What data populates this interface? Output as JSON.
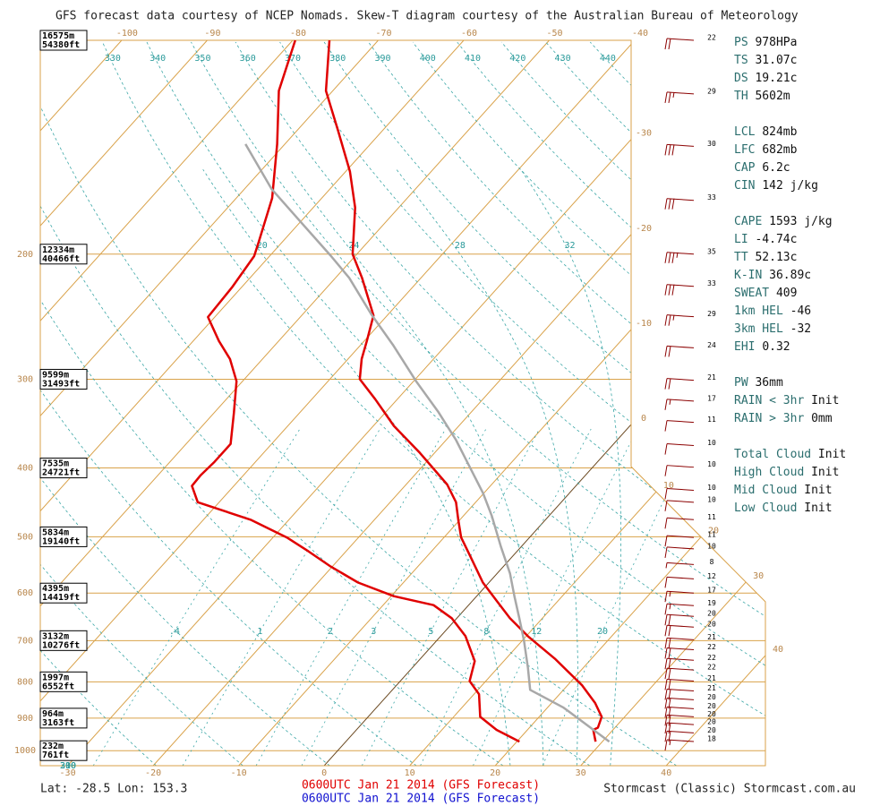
{
  "header": "GFS forecast data courtesy of NCEP Nomads.  Skew-T diagram courtesy of the Australian Bureau of Meteorology",
  "chart_data": {
    "type": "skewt",
    "ylim": [
      1050,
      100
    ],
    "yticks": [
      1000,
      900,
      800,
      700,
      600,
      500,
      400,
      300,
      200
    ],
    "height_labels": [
      {
        "pressure": 100,
        "m": "16575m",
        "ft": "54380ft"
      },
      {
        "pressure": 200,
        "m": "12334m",
        "ft": "40466ft"
      },
      {
        "pressure": 300,
        "m": "9599m",
        "ft": "31493ft"
      },
      {
        "pressure": 400,
        "m": "7535m",
        "ft": "24721ft"
      },
      {
        "pressure": 500,
        "m": "5834m",
        "ft": "19140ft"
      },
      {
        "pressure": 600,
        "m": "4395m",
        "ft": "14419ft"
      },
      {
        "pressure": 700,
        "m": "3132m",
        "ft": "10276ft"
      },
      {
        "pressure": 800,
        "m": "1997m",
        "ft": "6552ft"
      },
      {
        "pressure": 900,
        "m": "964m",
        "ft": "3163ft"
      },
      {
        "pressure": 1000,
        "m": "232m",
        "ft": "761ft"
      }
    ],
    "xlim": [
      -33.2,
      51.6
    ],
    "xticks": [
      -30,
      -20,
      -10,
      0,
      10,
      20,
      30,
      40
    ],
    "top_ticks": [
      -100,
      -90,
      -80,
      -70,
      -60,
      -50,
      -40
    ],
    "right_ticks": [
      -30,
      -20,
      -10,
      0,
      10,
      20,
      30,
      40
    ],
    "dry_adiabats_top": [
      330,
      340,
      350,
      360,
      370,
      380,
      390,
      400,
      410,
      420,
      430,
      440
    ],
    "dry_adiabats_left": [
      310,
      300,
      290,
      280,
      270,
      260,
      250
    ],
    "moist_adiabats": [
      20,
      24,
      28,
      32
    ],
    "mixing_ratio": [
      {
        "value": 0.4,
        "label": ".4"
      },
      1,
      2,
      3,
      5,
      8,
      12,
      20
    ],
    "series": [
      {
        "color": "#e00000",
        "pressure": [
          100,
          117.8,
          134,
          153,
          172,
          200,
          216,
          244,
          265,
          281,
          300,
          320,
          349,
          381,
          422,
          447,
          473,
          501,
          531,
          580,
          615,
          651,
          690,
          742,
          809,
          857,
          896,
          928,
          935,
          971
        ],
        "values": [
          -75.7,
          -70.8,
          -65.2,
          -59.5,
          -55.1,
          -50.5,
          -46.9,
          -41.6,
          -39.7,
          -38.4,
          -36.5,
          -32.6,
          -27.6,
          -21.7,
          -15.2,
          -12.3,
          -10.2,
          -8.0,
          -5.1,
          -0.7,
          2.8,
          6.2,
          10.2,
          15.7,
          21.7,
          25.1,
          27.3,
          28.0,
          27.7,
          29.2
        ]
      },
      {
        "color": "#e00000",
        "pressure": [
          100,
          117.8,
          140,
          166.8,
          192.8,
          201.3,
          222.9,
          245.2,
          265,
          281,
          302,
          334.3,
          370,
          392,
          409.5,
          424,
          447,
          473,
          501,
          524,
          550.5,
          580,
          606,
          624,
          651,
          690,
          748,
          798,
          833,
          896,
          935,
          971
        ],
        "values": [
          -79.7,
          -76.3,
          -70.9,
          -65.8,
          -62.7,
          -61.8,
          -61.1,
          -60.8,
          -57.0,
          -53.8,
          -50.7,
          -47.7,
          -44.8,
          -44.8,
          -45.0,
          -44.9,
          -42.5,
          -34.5,
          -28.4,
          -24.4,
          -20.2,
          -15.3,
          -9.7,
          -4.1,
          -0.6,
          2.9,
          6.6,
          8.1,
          10.6,
          13.1,
          16.4,
          20.3
        ]
      },
      {
        "color": "#a8a8a8",
        "pressure": [
          140,
          162,
          182,
          201,
          216,
          243,
          269,
          302,
          334,
          365,
          398,
          434,
          467,
          516,
          563,
          606,
          651,
          700,
          764,
          821,
          870,
          971
        ],
        "values": [
          -74.6,
          -66.8,
          -59.3,
          -52.9,
          -48.4,
          -42.0,
          -36.1,
          -29.7,
          -23.8,
          -18.9,
          -14.5,
          -10.1,
          -6.7,
          -2.4,
          1.5,
          4.4,
          7.3,
          10.2,
          13.5,
          16.1,
          21.9,
          30.8
        ]
      }
    ],
    "wind": {
      "color": "#8b0000",
      "pressure": [
        100,
        119,
        141,
        168,
        200,
        222,
        245,
        271,
        301,
        322,
        345,
        372,
        399,
        430,
        447,
        473,
        501,
        520,
        547,
        573,
        600,
        625,
        647,
        670,
        698,
        721,
        746,
        770,
        798,
        824,
        848,
        873,
        896,
        919,
        944,
        971
      ],
      "speed": [
        22,
        29,
        30,
        33,
        35,
        33,
        29,
        24,
        21,
        17,
        11,
        10,
        10,
        10,
        10,
        11,
        11,
        10,
        8,
        12,
        17,
        19,
        20,
        20,
        21,
        22,
        22,
        22,
        21,
        21,
        20,
        20,
        20,
        20,
        20,
        18
      ]
    }
  },
  "stats": [
    [
      [
        "PS",
        "978HPa"
      ],
      [
        "TS",
        "31.07c"
      ],
      [
        "DS",
        "19.21c"
      ],
      [
        "TH",
        "5602m"
      ]
    ],
    [
      [
        "LCL",
        "824mb"
      ],
      [
        "LFC",
        "682mb"
      ],
      [
        "CAP",
        "6.2c"
      ],
      [
        "CIN",
        "142 j/kg"
      ]
    ],
    [
      [
        "CAPE",
        "1593 j/kg"
      ],
      [
        "LI",
        "-4.74c"
      ],
      [
        "TT",
        "52.13c"
      ],
      [
        "K-IN",
        "36.89c"
      ],
      [
        "SWEAT",
        "409"
      ],
      [
        "1km HEL",
        "-46"
      ],
      [
        "3km HEL",
        "-32"
      ],
      [
        "EHI",
        "0.32"
      ]
    ],
    [
      [
        "PW",
        "36mm"
      ],
      [
        "RAIN < 3hr",
        "Init"
      ],
      [
        "RAIN > 3hr",
        "0mm"
      ]
    ],
    [
      [
        "Total Cloud",
        "Init"
      ],
      [
        "High Cloud",
        "Init"
      ],
      [
        "Mid Cloud",
        "Init"
      ],
      [
        "Low Cloud",
        "Init"
      ]
    ]
  ],
  "footer": {
    "location": "Lat: -28.5  Lon: 153.3",
    "run_red": "0600UTC Jan 21 2014 (GFS Forecast)",
    "run_blue": "0600UTC Jan 21 2014 (GFS Forecast)",
    "credit": "Stormcast (Classic) Stormcast.com.au"
  }
}
